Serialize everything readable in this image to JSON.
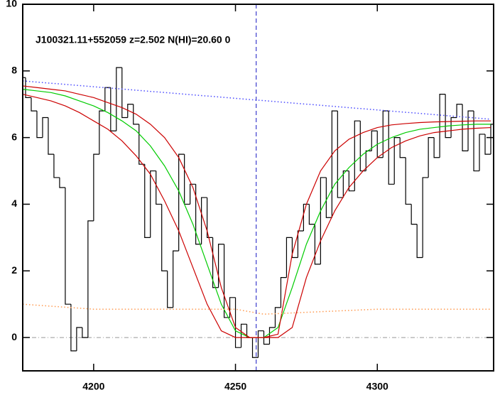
{
  "chart_data": {
    "type": "line",
    "title": "J100321.11+552059 z=2.502 N(HI)=20.60 0",
    "xlim": [
      4175,
      4341
    ],
    "ylim": [
      -1,
      10
    ],
    "xticks": [
      4200,
      4250,
      4300
    ],
    "yticks": [
      0,
      2,
      4,
      6,
      8,
      10
    ],
    "reference_lines": {
      "y": 0,
      "y_color": "#999999",
      "x": 4257.3,
      "x_color": "#3a3acc"
    },
    "series": [
      {
        "style": "steps",
        "color": "#000000",
        "x": [
          4175,
          4177,
          4179,
          4181,
          4183,
          4185,
          4187,
          4189,
          4191,
          4193,
          4195,
          4197,
          4199,
          4201,
          4203,
          4205,
          4207,
          4209,
          4211,
          4213,
          4215,
          4217,
          4219,
          4221,
          4223,
          4225,
          4227,
          4229,
          4231,
          4233,
          4235,
          4237,
          4239,
          4241,
          4243,
          4245,
          4247,
          4249,
          4251,
          4253,
          4255,
          4257,
          4259,
          4261,
          4263,
          4265,
          4267,
          4269,
          4271,
          4273,
          4275,
          4277,
          4279,
          4281,
          4283,
          4285,
          4287,
          4289,
          4291,
          4293,
          4295,
          4297,
          4299,
          4301,
          4303,
          4305,
          4307,
          4309,
          4311,
          4313,
          4315,
          4317,
          4319,
          4321,
          4323,
          4325,
          4327,
          4329,
          4331,
          4333,
          4335,
          4337,
          4339,
          4341
        ],
        "values": [
          7.8,
          7.2,
          6.8,
          6.0,
          6.6,
          5.5,
          4.8,
          4.5,
          1.0,
          -0.4,
          0.3,
          0.0,
          3.5,
          5.5,
          6.8,
          7.5,
          6.2,
          8.1,
          6.6,
          7.0,
          6.4,
          5.2,
          3.0,
          5.0,
          4.0,
          2.0,
          0.9,
          2.6,
          5.5,
          4.0,
          4.6,
          2.8,
          4.2,
          3.0,
          1.5,
          2.8,
          0.6,
          1.2,
          -0.3,
          0.4,
          0.0,
          -0.6,
          0.2,
          -0.2,
          0.3,
          0.9,
          1.8,
          3.0,
          2.4,
          3.2,
          4.0,
          3.4,
          2.2,
          4.8,
          3.6,
          6.8,
          4.2,
          5.0,
          4.4,
          6.5,
          5.0,
          5.6,
          6.2,
          5.4,
          6.8,
          4.6,
          6.0,
          5.4,
          4.0,
          3.4,
          2.4,
          4.8,
          6.0,
          5.4,
          7.3,
          6.0,
          6.6,
          7.0,
          5.6,
          6.8,
          5.0,
          6.1,
          5.5,
          6.4
        ]
      },
      {
        "style": "solid",
        "color": "#00cc00",
        "x": [
          4175,
          4180,
          4185,
          4190,
          4195,
          4200,
          4205,
          4210,
          4215,
          4220,
          4225,
          4230,
          4235,
          4240,
          4245,
          4250,
          4255,
          4260,
          4265,
          4270,
          4275,
          4280,
          4285,
          4290,
          4295,
          4300,
          4305,
          4310,
          4315,
          4320,
          4325,
          4330,
          4335,
          4340
        ],
        "values": [
          7.45,
          7.4,
          7.35,
          7.25,
          7.1,
          6.95,
          6.75,
          6.5,
          6.2,
          5.75,
          5.15,
          4.4,
          3.4,
          2.2,
          1.0,
          0.2,
          0,
          0,
          0.3,
          1.5,
          2.8,
          3.8,
          4.6,
          5.1,
          5.5,
          5.8,
          6.0,
          6.15,
          6.25,
          6.3,
          6.35,
          6.38,
          6.4,
          6.4
        ]
      },
      {
        "style": "solid",
        "color": "#cc0000",
        "x": [
          4175,
          4180,
          4185,
          4190,
          4195,
          4200,
          4205,
          4210,
          4215,
          4220,
          4225,
          4230,
          4235,
          4240,
          4245,
          4250,
          4255,
          4260,
          4265,
          4270,
          4275,
          4280,
          4285,
          4290,
          4295,
          4300,
          4305,
          4310,
          4315,
          4320,
          4325,
          4330,
          4335,
          4340
        ],
        "values": [
          7.55,
          7.5,
          7.45,
          7.4,
          7.3,
          7.2,
          7.05,
          6.9,
          6.7,
          6.4,
          6.0,
          5.4,
          4.5,
          3.2,
          1.5,
          0.3,
          0,
          0,
          0.1,
          2.5,
          4.0,
          5.0,
          5.6,
          5.95,
          6.15,
          6.3,
          6.38,
          6.42,
          6.45,
          6.47,
          6.48,
          6.49,
          6.5,
          6.5
        ]
      },
      {
        "style": "solid",
        "color": "#cc0000",
        "x": [
          4175,
          4180,
          4185,
          4190,
          4195,
          4200,
          4205,
          4210,
          4215,
          4220,
          4225,
          4230,
          4235,
          4240,
          4245,
          4250,
          4255,
          4260,
          4265,
          4270,
          4275,
          4280,
          4285,
          4290,
          4295,
          4300,
          4305,
          4310,
          4315,
          4320,
          4325,
          4330,
          4335,
          4340
        ],
        "values": [
          7.3,
          7.2,
          7.1,
          6.95,
          6.75,
          6.5,
          6.25,
          5.9,
          5.45,
          4.9,
          4.1,
          3.2,
          2.1,
          1.0,
          0.2,
          0,
          0,
          0,
          0,
          0.3,
          1.8,
          2.9,
          3.8,
          4.5,
          5.0,
          5.4,
          5.7,
          5.9,
          6.05,
          6.15,
          6.2,
          6.25,
          6.28,
          6.3
        ]
      },
      {
        "style": "dotted",
        "color": "#4a4aff",
        "x": [
          4175,
          4340
        ],
        "values": [
          7.7,
          6.55
        ]
      },
      {
        "style": "dotted",
        "color": "#ff9a50",
        "x": [
          4175,
          4200,
          4250,
          4260,
          4300,
          4340
        ],
        "values": [
          1.0,
          0.85,
          0.85,
          0.7,
          0.85,
          0.85
        ]
      }
    ]
  }
}
